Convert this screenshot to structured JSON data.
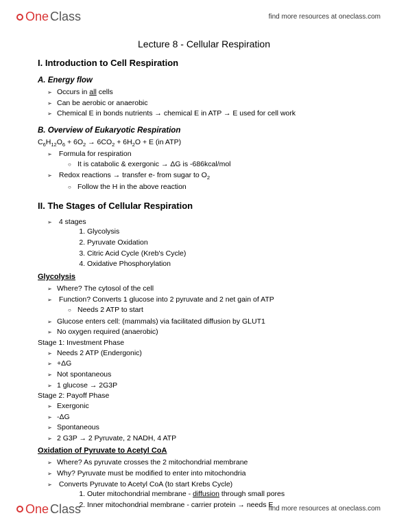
{
  "brand": {
    "part1": "One",
    "part2": "Class"
  },
  "tagline": "find more resources at oneclass.com",
  "title": "Lecture 8 - Cellular Respiration",
  "sec1": {
    "heading": "I. Introduction to Cell Respiration",
    "a": {
      "heading": "A. Energy flow",
      "items": [
        "Occurs in <span class='und'>all</span> cells",
        "Can be aerobic or anaerobic",
        "Chemical E in bonds nutrients → chemical E in ATP → E used for cell work"
      ]
    },
    "b": {
      "heading": "B. Overview of Eukaryotic Respiration",
      "formula": "C<span class='sub'>6</span>H<span class='sub'>12</span>O<span class='sub'>6</span> + 6O<span class='sub'>2</span> → 6CO<span class='sub'>2</span> + 6H<span class='sub'>2</span>O + E (in ATP)",
      "items": [
        {
          "text": "Formula for respiration",
          "sub": [
            "It is catabolic & exergonic → ΔG is -686kcal/mol"
          ]
        },
        {
          "text": "Redox reactions → transfer e- from sugar to O<span class='sub'>2</span>",
          "sub": [
            "Follow the H in the above reaction"
          ]
        }
      ]
    }
  },
  "sec2": {
    "heading": "II. The Stages of Cellular Respiration",
    "intro": "4 stages",
    "stages": [
      "Glycolysis",
      "Pyruvate Oxidation",
      "Citric Acid Cycle (Kreb's Cycle)",
      "Oxidative Phosphorylation"
    ],
    "glyco": {
      "heading": "Glycolysis",
      "items": [
        {
          "text": "Where? The cytosol of the cell"
        },
        {
          "text": "Function? Converts 1 glucose into 2 pyruvate and 2 net gain of ATP",
          "sub": [
            "Needs 2 ATP to start"
          ]
        },
        {
          "text": "Glucose enters cell: (mammals) via facilitated diffusion by GLUT1"
        },
        {
          "text": "No oxygen required (anaerobic)"
        }
      ],
      "s1label": "Stage 1: Investment Phase",
      "s1items": [
        "Needs 2 ATP (Endergonic)",
        "+ΔG",
        "Not spontaneous",
        "1 glucose → 2G3P"
      ],
      "s2label": "Stage 2: Payoff Phase",
      "s2items": [
        "Exergonic",
        "-ΔG",
        "Spontaneous",
        "2 G3P → 2 Pyruvate, 2 NADH, 4 ATP"
      ]
    },
    "ox": {
      "heading": "Oxidation of Pyruvate to Acetyl CoA",
      "items": [
        "Where? As pyruvate crosses the 2 mitochondrial membrane",
        "Why? Pyruvate must be modified to enter into mitochondria",
        "Converts Pyruvate to Acetyl CoA (to start Krebs Cycle)"
      ],
      "numbered": [
        "Outer mitochondrial membrane - <span class='und'>diffusion</span> through small pores",
        "Inner mitochondrial membrane - carrier protein → needs E"
      ]
    }
  }
}
